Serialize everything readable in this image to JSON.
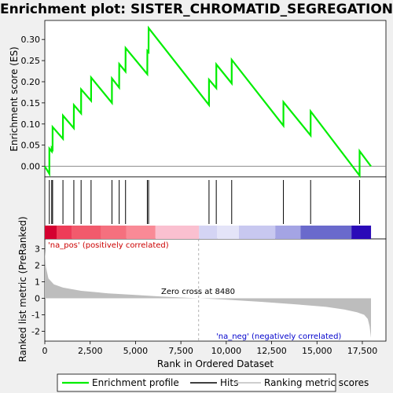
{
  "chart_data": {
    "type": "line",
    "title": "Enrichment plot: SISTER_CHROMATID_SEGREGATION",
    "x_label": "Rank in Ordered Dataset",
    "y_label_top": "Enrichment score (ES)",
    "y_label_bottom": "Ranked list metric (PreRanked)",
    "x_ticks": [
      0,
      2500,
      5000,
      7500,
      10000,
      12500,
      15000,
      17500
    ],
    "x_tick_labels": [
      "0",
      "2,500",
      "5,000",
      "7,500",
      "10,000",
      "12,500",
      "15,000",
      "17,500"
    ],
    "es_y_ticks": [
      0.0,
      0.05,
      0.1,
      0.15,
      0.2,
      0.25,
      0.3
    ],
    "es_y_tick_labels": [
      "0.00",
      "0.05",
      "0.10",
      "0.15",
      "0.20",
      "0.25",
      "0.30"
    ],
    "es_ylim": [
      -0.025,
      0.345
    ],
    "metric_y_ticks": [
      -2,
      -1,
      0,
      1,
      2,
      3
    ],
    "metric_y_tick_labels": [
      "-2",
      "-1",
      "0",
      "1",
      "2",
      "3"
    ],
    "metric_ylim": [
      -2.6,
      3.6
    ],
    "xlim": [
      0,
      18800
    ],
    "n_genes": 17979,
    "hits": [
      250,
      380,
      430,
      1000,
      1600,
      2000,
      2550,
      3700,
      4100,
      4450,
      5650,
      5720,
      9050,
      9450,
      10300,
      13150,
      14650,
      17350
    ],
    "es_profile": {
      "x": [
        0,
        250,
        251,
        380,
        381,
        430,
        431,
        1000,
        1001,
        1600,
        1601,
        2000,
        2001,
        2550,
        2551,
        3700,
        3701,
        4100,
        4101,
        4450,
        4451,
        5650,
        5651,
        5720,
        5721,
        9050,
        9051,
        9450,
        9451,
        10300,
        10301,
        13150,
        13151,
        14650,
        14651,
        17350,
        17351,
        17979
      ],
      "y": [
        0.0,
        -0.018,
        0.042,
        0.035,
        0.043,
        0.04,
        0.093,
        0.065,
        0.12,
        0.09,
        0.145,
        0.125,
        0.182,
        0.155,
        0.21,
        0.15,
        0.208,
        0.186,
        0.242,
        0.224,
        0.28,
        0.218,
        0.273,
        0.27,
        0.327,
        0.145,
        0.205,
        0.185,
        0.241,
        0.196,
        0.252,
        0.096,
        0.152,
        0.073,
        0.13,
        -0.022,
        0.036,
        0.0
      ]
    },
    "metric_profile": {
      "x": [
        0,
        60,
        200,
        500,
        1000,
        2000,
        3500,
        5000,
        6500,
        8480,
        10000,
        12000,
        14000,
        15500,
        16500,
        17200,
        17600,
        17800,
        17900,
        17979
      ],
      "y": [
        2.9,
        1.9,
        1.2,
        0.85,
        0.65,
        0.45,
        0.3,
        0.2,
        0.1,
        0.0,
        -0.08,
        -0.22,
        -0.38,
        -0.52,
        -0.68,
        -0.85,
        -1.0,
        -1.25,
        -1.7,
        -2.4
      ]
    },
    "color_bar": {
      "x_breaks": [
        0,
        650,
        1500,
        3100,
        4500,
        6100,
        8500,
        9500,
        10700,
        12700,
        14100,
        16900,
        17979
      ],
      "colors": [
        "#d40030",
        "#ee3c58",
        "#f25a6c",
        "#f5707e",
        "#f98a96",
        "#fac0d0",
        "#d4d4f4",
        "#e4e4f8",
        "#c8c8f0",
        "#a4a4e4",
        "#6a6acc",
        "#2a0ab8"
      ]
    },
    "zero_cross_rank": 8480,
    "zero_cross_label": "Zero cross at 8480",
    "pos_label": "'na_pos' (positively correlated)",
    "neg_label": "'na_neg' (negatively correlated)",
    "colors": {
      "es_line": "#00ee00",
      "hit_line": "#000000",
      "metric_fill": "#bdbdbd",
      "pos_label": "#cc0000",
      "neg_label": "#0000cc"
    },
    "legend": {
      "position": "bottom",
      "entries": [
        "Enrichment profile",
        "Hits",
        "Ranking metric scores"
      ]
    }
  }
}
